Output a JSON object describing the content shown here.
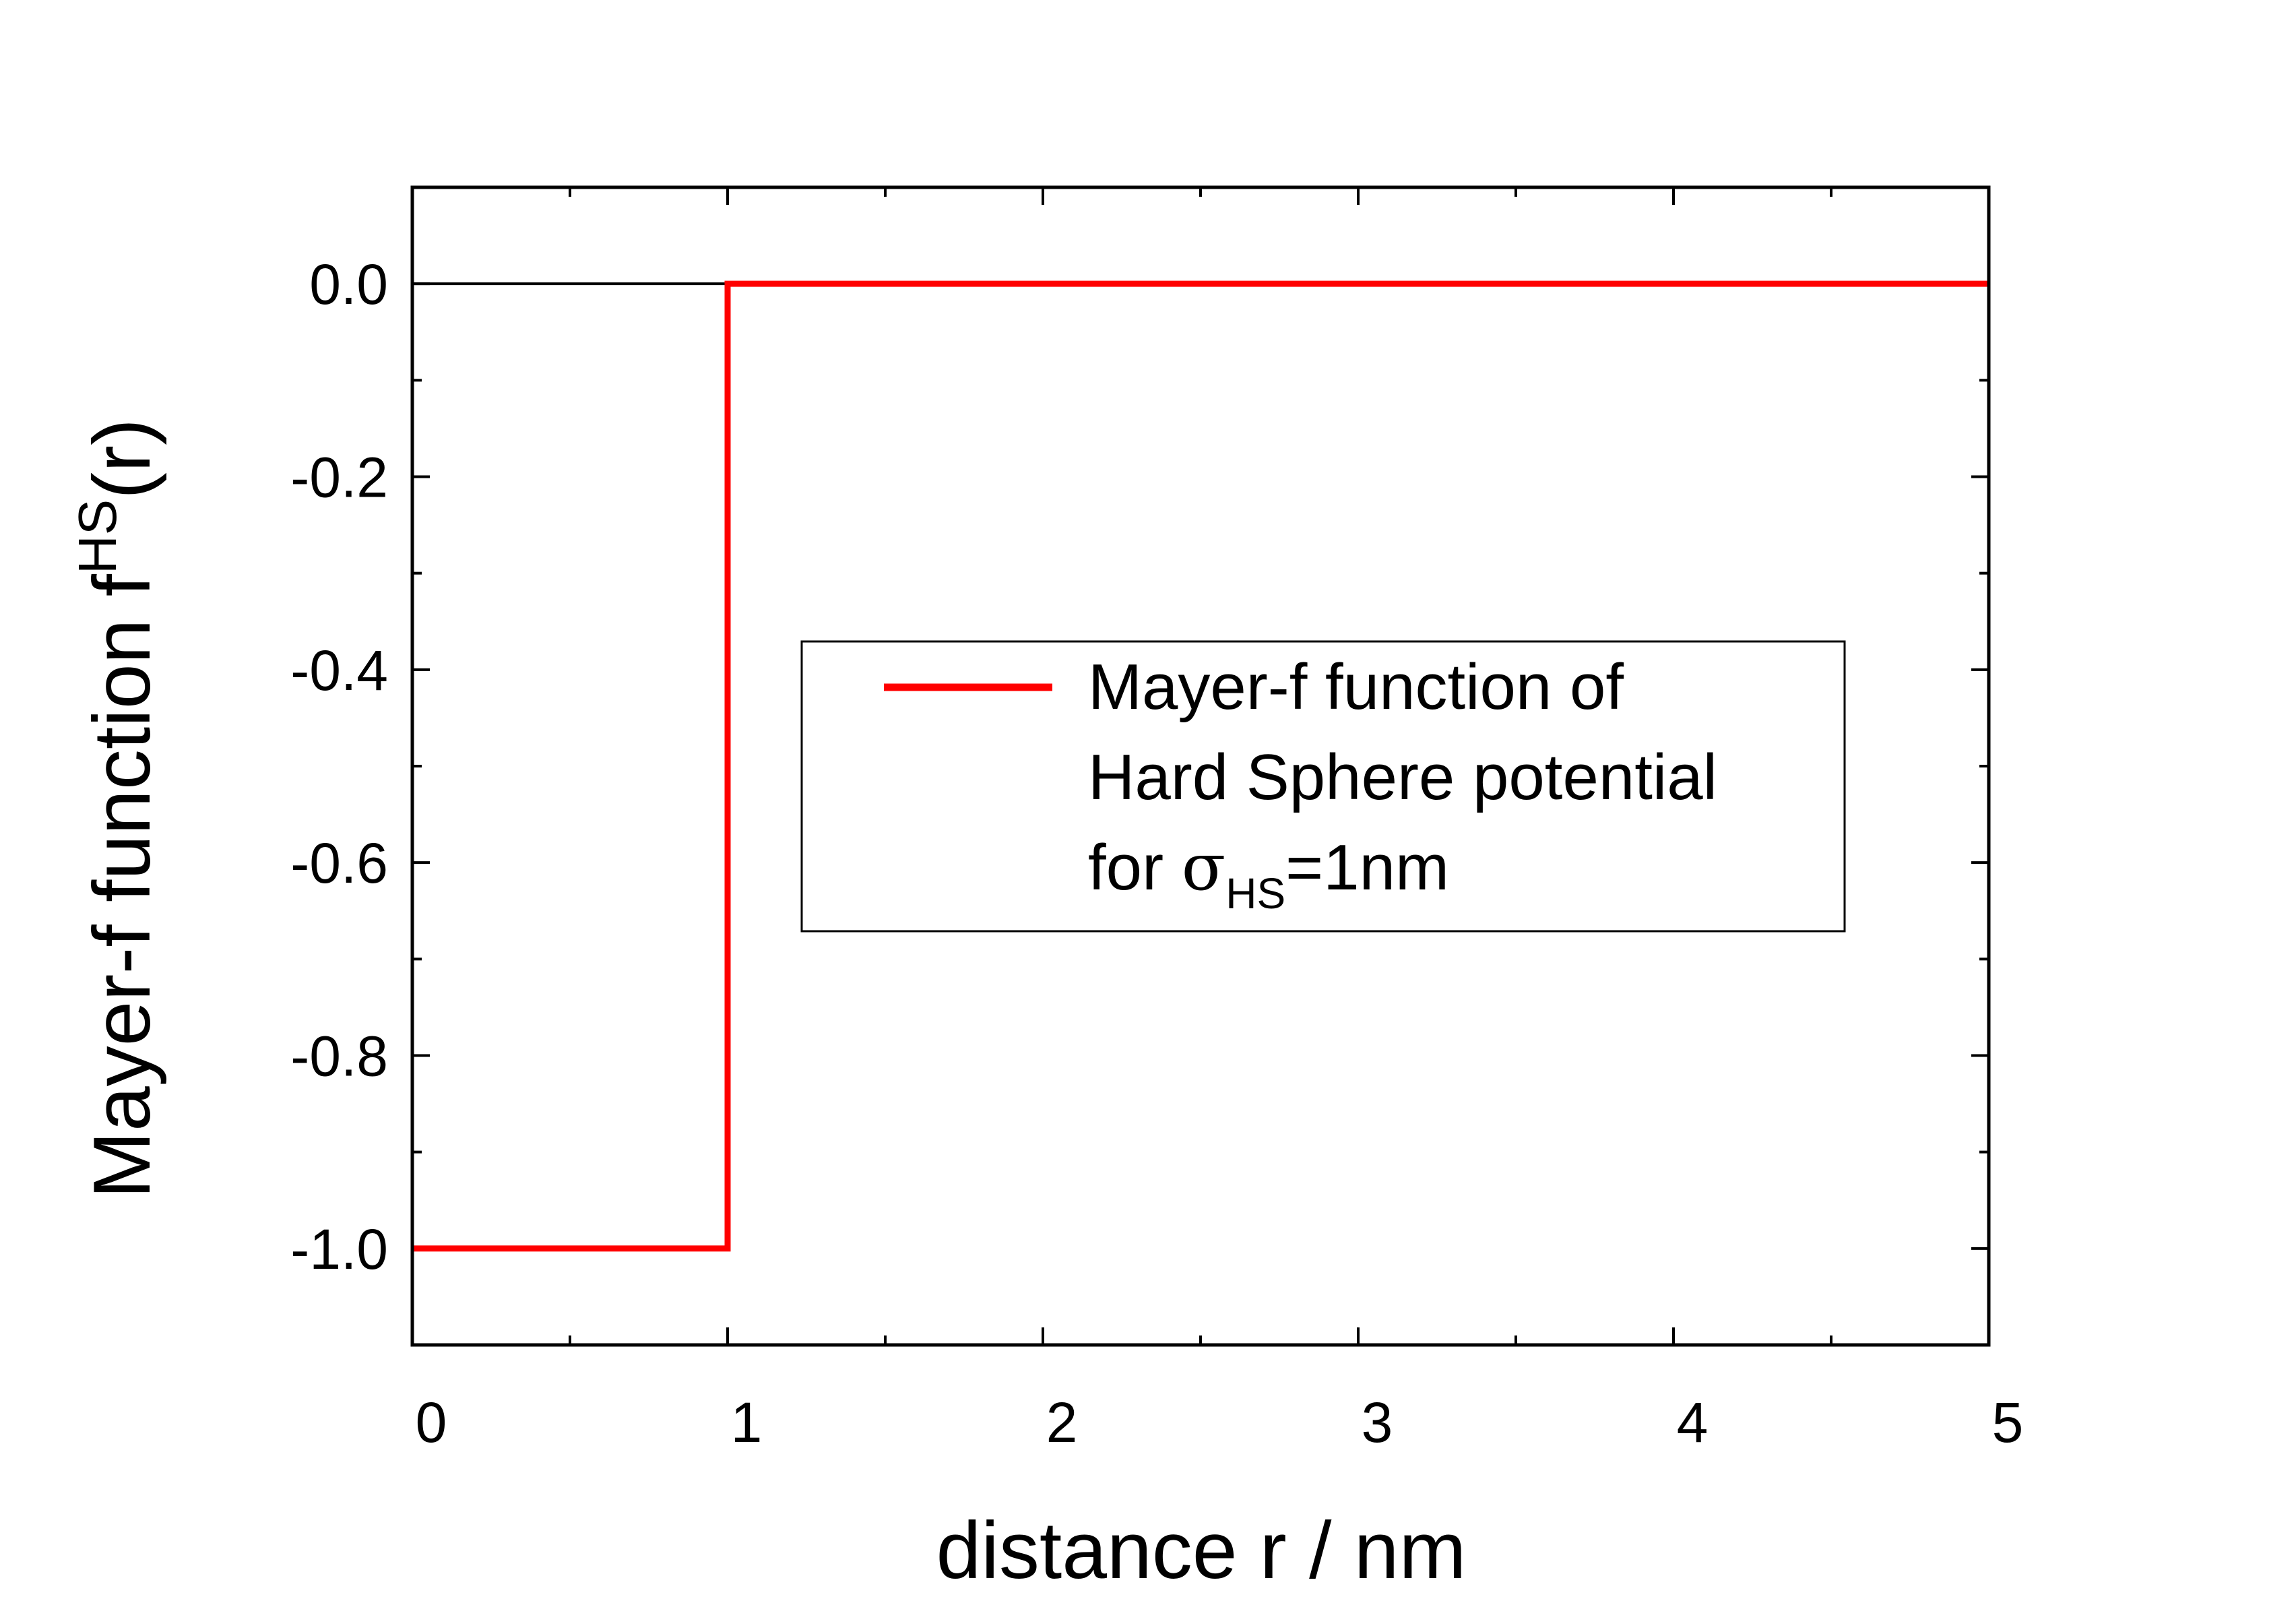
{
  "chart_data": {
    "type": "line",
    "xlabel": "distance r / nm",
    "ylabel": {
      "main": "Mayer-f function f",
      "superscript": "HS",
      "suffix": "(r)"
    },
    "xlim": [
      0,
      5
    ],
    "ylim": [
      -1.1,
      0.1
    ],
    "x_major_ticks": [
      0,
      1,
      2,
      3,
      4,
      5
    ],
    "x_tick_labels": [
      "0",
      "1",
      "2",
      "3",
      "4",
      "5"
    ],
    "x_minor_ticks": [
      0.5,
      1.5,
      2.5,
      3.5,
      4.5
    ],
    "y_major_ticks": [
      0.0,
      -0.2,
      -0.4,
      -0.6,
      -0.8,
      -1.0
    ],
    "y_tick_labels": [
      "0.0",
      "-0.2",
      "-0.4",
      "-0.6",
      "-0.8",
      "-1.0"
    ],
    "y_minor_ticks": [
      -0.1,
      -0.3,
      -0.5,
      -0.7,
      -0.9
    ],
    "grid": false,
    "reference_line": {
      "y": 0,
      "color": "#000000"
    },
    "series": [
      {
        "name": "Mayer-f function of Hard Sphere potential for σHS=1nm",
        "color": "#ff0000",
        "x": [
          0,
          1,
          1,
          5
        ],
        "y": [
          -1.0,
          -1.0,
          0.0,
          0.0
        ]
      }
    ],
    "legend": {
      "placement": "center-right",
      "lines": [
        {
          "text": "Mayer-f function of"
        },
        {
          "text": "Hard Sphere potential"
        },
        {
          "prefix": "for ",
          "symbol": "σ",
          "subscript": "HS",
          "suffix": "=1nm"
        }
      ]
    }
  }
}
